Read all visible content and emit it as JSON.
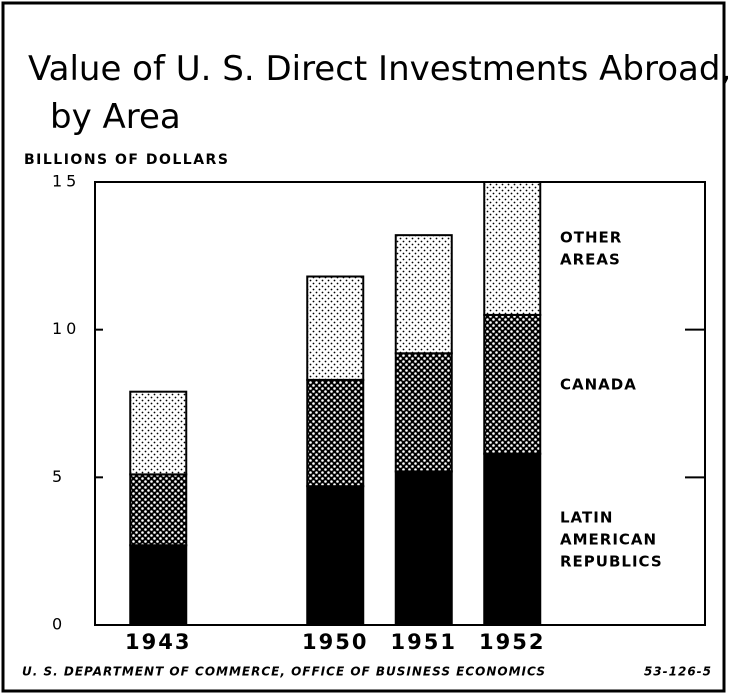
{
  "chart_data": {
    "type": "stacked-bar",
    "title": "Value of U. S. Direct Investments Abroad, by Area",
    "y_axis_label": "BILLIONS OF DOLLARS",
    "categories": [
      "1943",
      null,
      "1950",
      "1951",
      "1952"
    ],
    "series": [
      {
        "name": "LATIN AMERICAN REPUBLICS",
        "color": "#000000",
        "pattern": "solid",
        "values": [
          2.7,
          null,
          4.7,
          5.2,
          5.8
        ]
      },
      {
        "name": "CANADA",
        "color": "#000000",
        "pattern": "crosshatch",
        "values": [
          2.4,
          null,
          3.6,
          4.0,
          4.7
        ]
      },
      {
        "name": "OTHER AREAS",
        "color": "#000000",
        "pattern": "dots",
        "values": [
          2.8,
          null,
          3.5,
          4.0,
          4.5
        ]
      }
    ],
    "ylim": [
      0,
      15
    ],
    "yticks": [
      0,
      5,
      10,
      15
    ],
    "source": "U. S. DEPARTMENT OF COMMERCE, OFFICE OF BUSINESS ECONOMICS",
    "code": "53-126-5"
  }
}
